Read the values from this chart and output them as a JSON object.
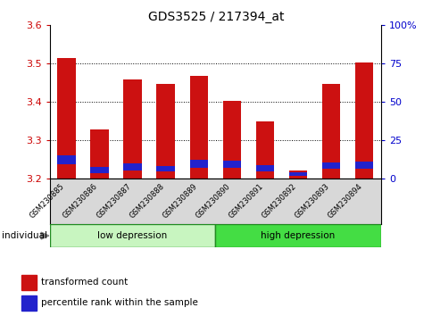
{
  "title": "GDS3525 / 217394_at",
  "samples": [
    "GSM230885",
    "GSM230886",
    "GSM230887",
    "GSM230888",
    "GSM230889",
    "GSM230890",
    "GSM230891",
    "GSM230892",
    "GSM230893",
    "GSM230894"
  ],
  "red_values": [
    3.515,
    3.328,
    3.458,
    3.447,
    3.468,
    3.402,
    3.348,
    3.222,
    3.447,
    3.503
  ],
  "blue_values": [
    0.022,
    0.016,
    0.018,
    0.015,
    0.02,
    0.018,
    0.016,
    0.008,
    0.018,
    0.02
  ],
  "blue_bottoms": [
    3.238,
    3.215,
    3.222,
    3.218,
    3.228,
    3.228,
    3.218,
    3.208,
    3.225,
    3.225
  ],
  "ymin": 3.2,
  "ymax": 3.6,
  "y2min": 0,
  "y2max": 100,
  "yticks": [
    3.2,
    3.3,
    3.4,
    3.5,
    3.6
  ],
  "y2ticks": [
    0,
    25,
    50,
    75,
    100
  ],
  "y2ticklabels": [
    "0",
    "25",
    "50",
    "75",
    "100%"
  ],
  "group1_label": "low depression",
  "group1_color": "#c8f5c0",
  "group2_label": "high depression",
  "group2_color": "#44dd44",
  "bar_color_red": "#CC1111",
  "bar_color_blue": "#2222CC",
  "bar_width": 0.55,
  "legend_items": [
    {
      "color": "#CC1111",
      "label": "transformed count"
    },
    {
      "color": "#2222CC",
      "label": "percentile rank within the sample"
    }
  ],
  "individual_label": "individual",
  "title_fontsize": 10,
  "tick_color_left": "#CC0000",
  "tick_color_right": "#0000CC",
  "background_color": "#ffffff",
  "xtick_bg": "#d8d8d8"
}
